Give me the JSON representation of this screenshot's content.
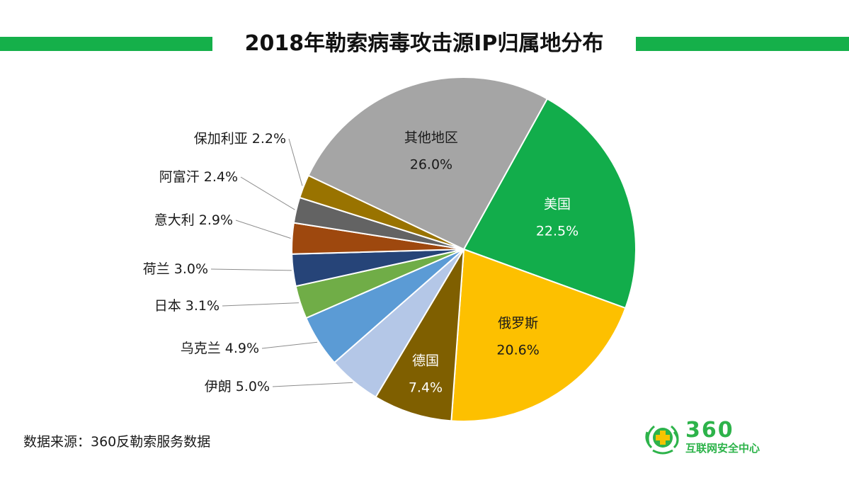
{
  "title": "2018年勒索病毒攻击源IP归属地分布",
  "source": "数据来源：360反勒索服务数据",
  "logo": {
    "number": "360",
    "subtitle": "互联网安全中心"
  },
  "chart_data": {
    "type": "pie",
    "title": "2018年勒索病毒攻击源IP归属地分布",
    "start_angle_deg": -61,
    "direction": "clockwise",
    "slices": [
      {
        "label": "美国",
        "value": 22.5,
        "value_label": "22.5%",
        "color": "#12ad4b",
        "label_color": "#ffffff",
        "label_position": "inside"
      },
      {
        "label": "俄罗斯",
        "value": 20.6,
        "value_label": "20.6%",
        "color": "#fdc000",
        "label_color": "#1a1a1a",
        "label_position": "inside"
      },
      {
        "label": "德国",
        "value": 7.4,
        "value_label": "7.4%",
        "color": "#7f5f00",
        "label_color": "#ffffff",
        "label_position": "inside"
      },
      {
        "label": "伊朗",
        "value": 5.0,
        "value_label": "5.0%",
        "color": "#b4c7e7",
        "label_color": "#1a1a1a",
        "label_position": "outside"
      },
      {
        "label": "乌克兰",
        "value": 4.9,
        "value_label": "4.9%",
        "color": "#5b9bd5",
        "label_color": "#1a1a1a",
        "label_position": "outside"
      },
      {
        "label": "日本",
        "value": 3.1,
        "value_label": "3.1%",
        "color": "#70ad47",
        "label_color": "#1a1a1a",
        "label_position": "outside"
      },
      {
        "label": "荷兰",
        "value": 3.0,
        "value_label": "3.0%",
        "color": "#264478",
        "label_color": "#1a1a1a",
        "label_position": "outside"
      },
      {
        "label": "意大利",
        "value": 2.9,
        "value_label": "2.9%",
        "color": "#9e480e",
        "label_color": "#1a1a1a",
        "label_position": "outside"
      },
      {
        "label": "阿富汗",
        "value": 2.4,
        "value_label": "2.4%",
        "color": "#636363",
        "label_color": "#1a1a1a",
        "label_position": "outside"
      },
      {
        "label": "保加利亚",
        "value": 2.2,
        "value_label": "2.2%",
        "color": "#997300",
        "label_color": "#1a1a1a",
        "label_position": "outside"
      },
      {
        "label": "其他地区",
        "value": 26.0,
        "value_label": "26.0%",
        "color": "#a5a5a5",
        "label_color": "#1a1a1a",
        "label_position": "inside"
      }
    ]
  }
}
